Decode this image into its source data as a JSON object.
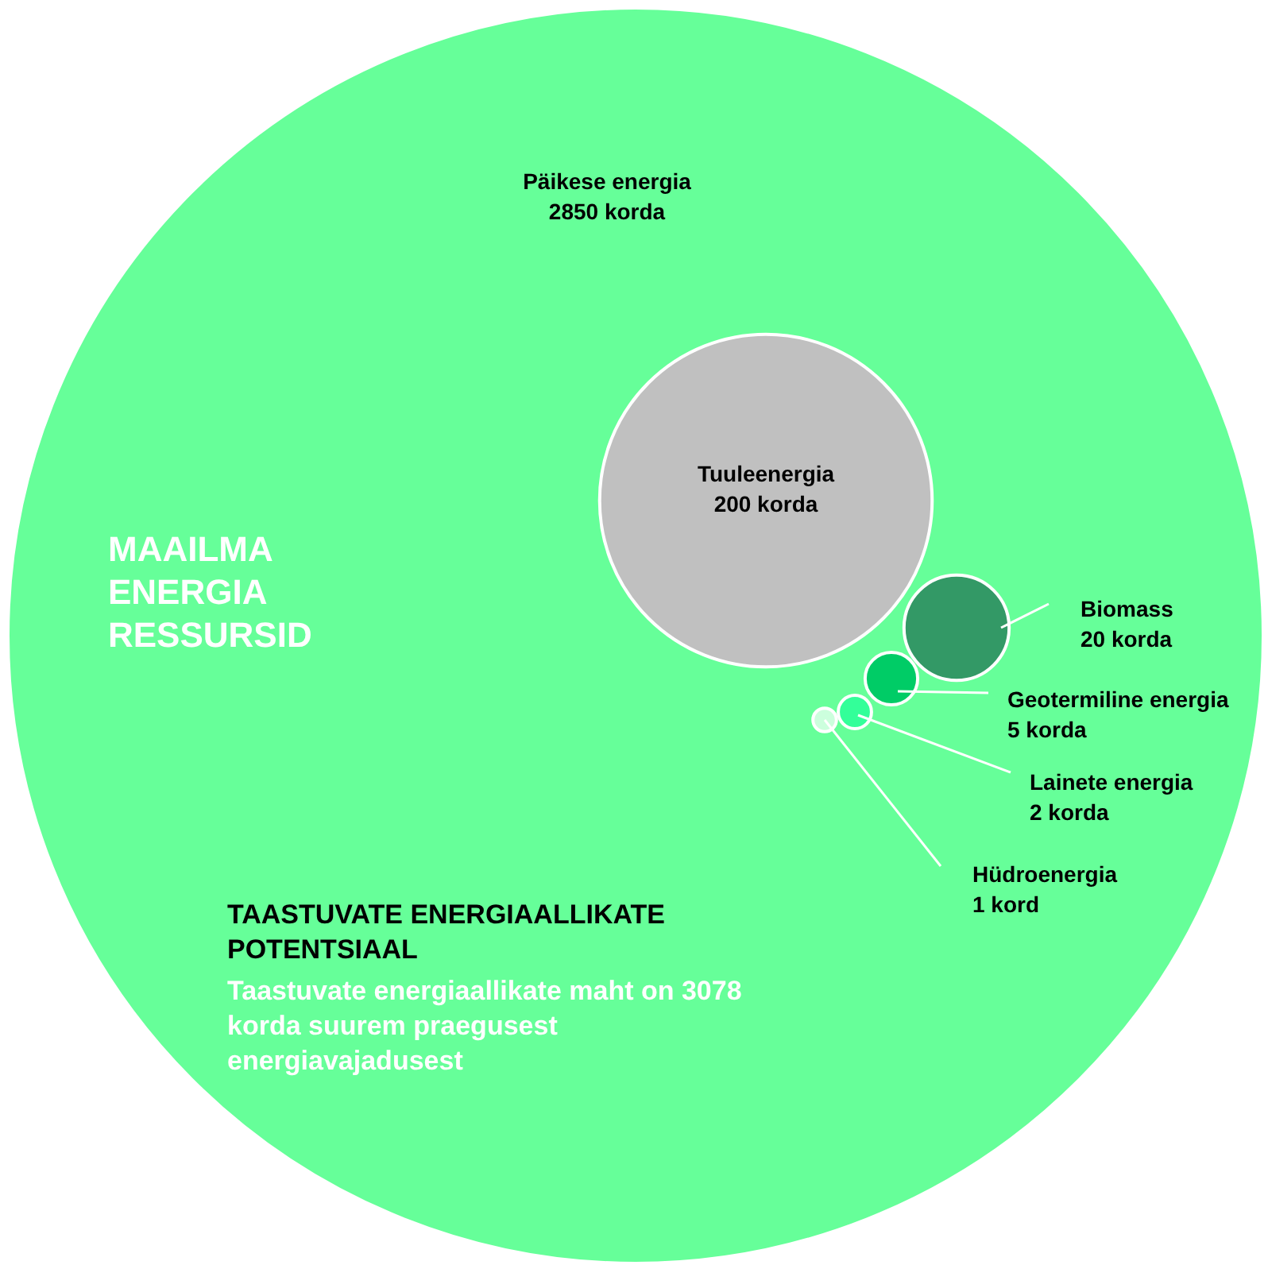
{
  "chart_data": {
    "type": "other",
    "title": "MAAILMA\nENERGIA\nRESSURSID",
    "subtitle": "TAASTUVATE ENERGIAALLIKATE\nPOTENTSIAAL",
    "annotations": [
      "Taastuvate energiaallikate maht on 3078\nkorda suurem praegusest\nenergiavajadusest"
    ],
    "categories": [
      "Päikese energia",
      "Tuuleenergia",
      "Biomass",
      "Geotermiline energia",
      "Lainete energia",
      "Hüdroenergia"
    ],
    "values": [
      2850,
      200,
      20,
      5,
      2,
      1
    ],
    "value_labels": [
      "2850 korda",
      "200 korda",
      "20 korda",
      "5 korda",
      "2 korda",
      "1 kord"
    ],
    "colors": [
      "#66ff99",
      "#c0c0c0",
      "#339966",
      "#00cc66",
      "#33ff99",
      "#ccffdd"
    ]
  }
}
